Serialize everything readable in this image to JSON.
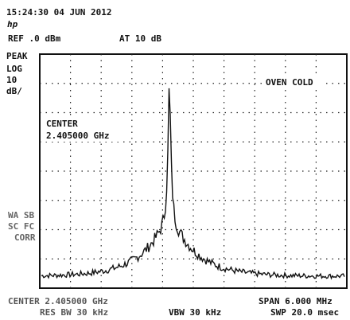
{
  "header": {
    "timestamp": "15:24:30  04 JUN 2012",
    "logo": "hp",
    "ref_level": "REF .0 dBm",
    "attenuation": "AT 10 dB"
  },
  "left_panel": {
    "detector": "PEAK",
    "scale_type": "LOG",
    "scale_value": "10",
    "scale_unit": "dB/"
  },
  "status_labels": [
    "WA SB",
    "SC FC",
    "CORR"
  ],
  "screen": {
    "message": "OVEN COLD",
    "marker_label": "CENTER",
    "marker_value": "2.405000 GHz"
  },
  "footer": {
    "center": "CENTER 2.405000 GHz",
    "res_bw": "RES BW 30 kHz",
    "vbw": "VBW 30 kHz",
    "span": "SPAN 6.000 MHz",
    "sweep": "SWP 20.0 msec"
  }
}
